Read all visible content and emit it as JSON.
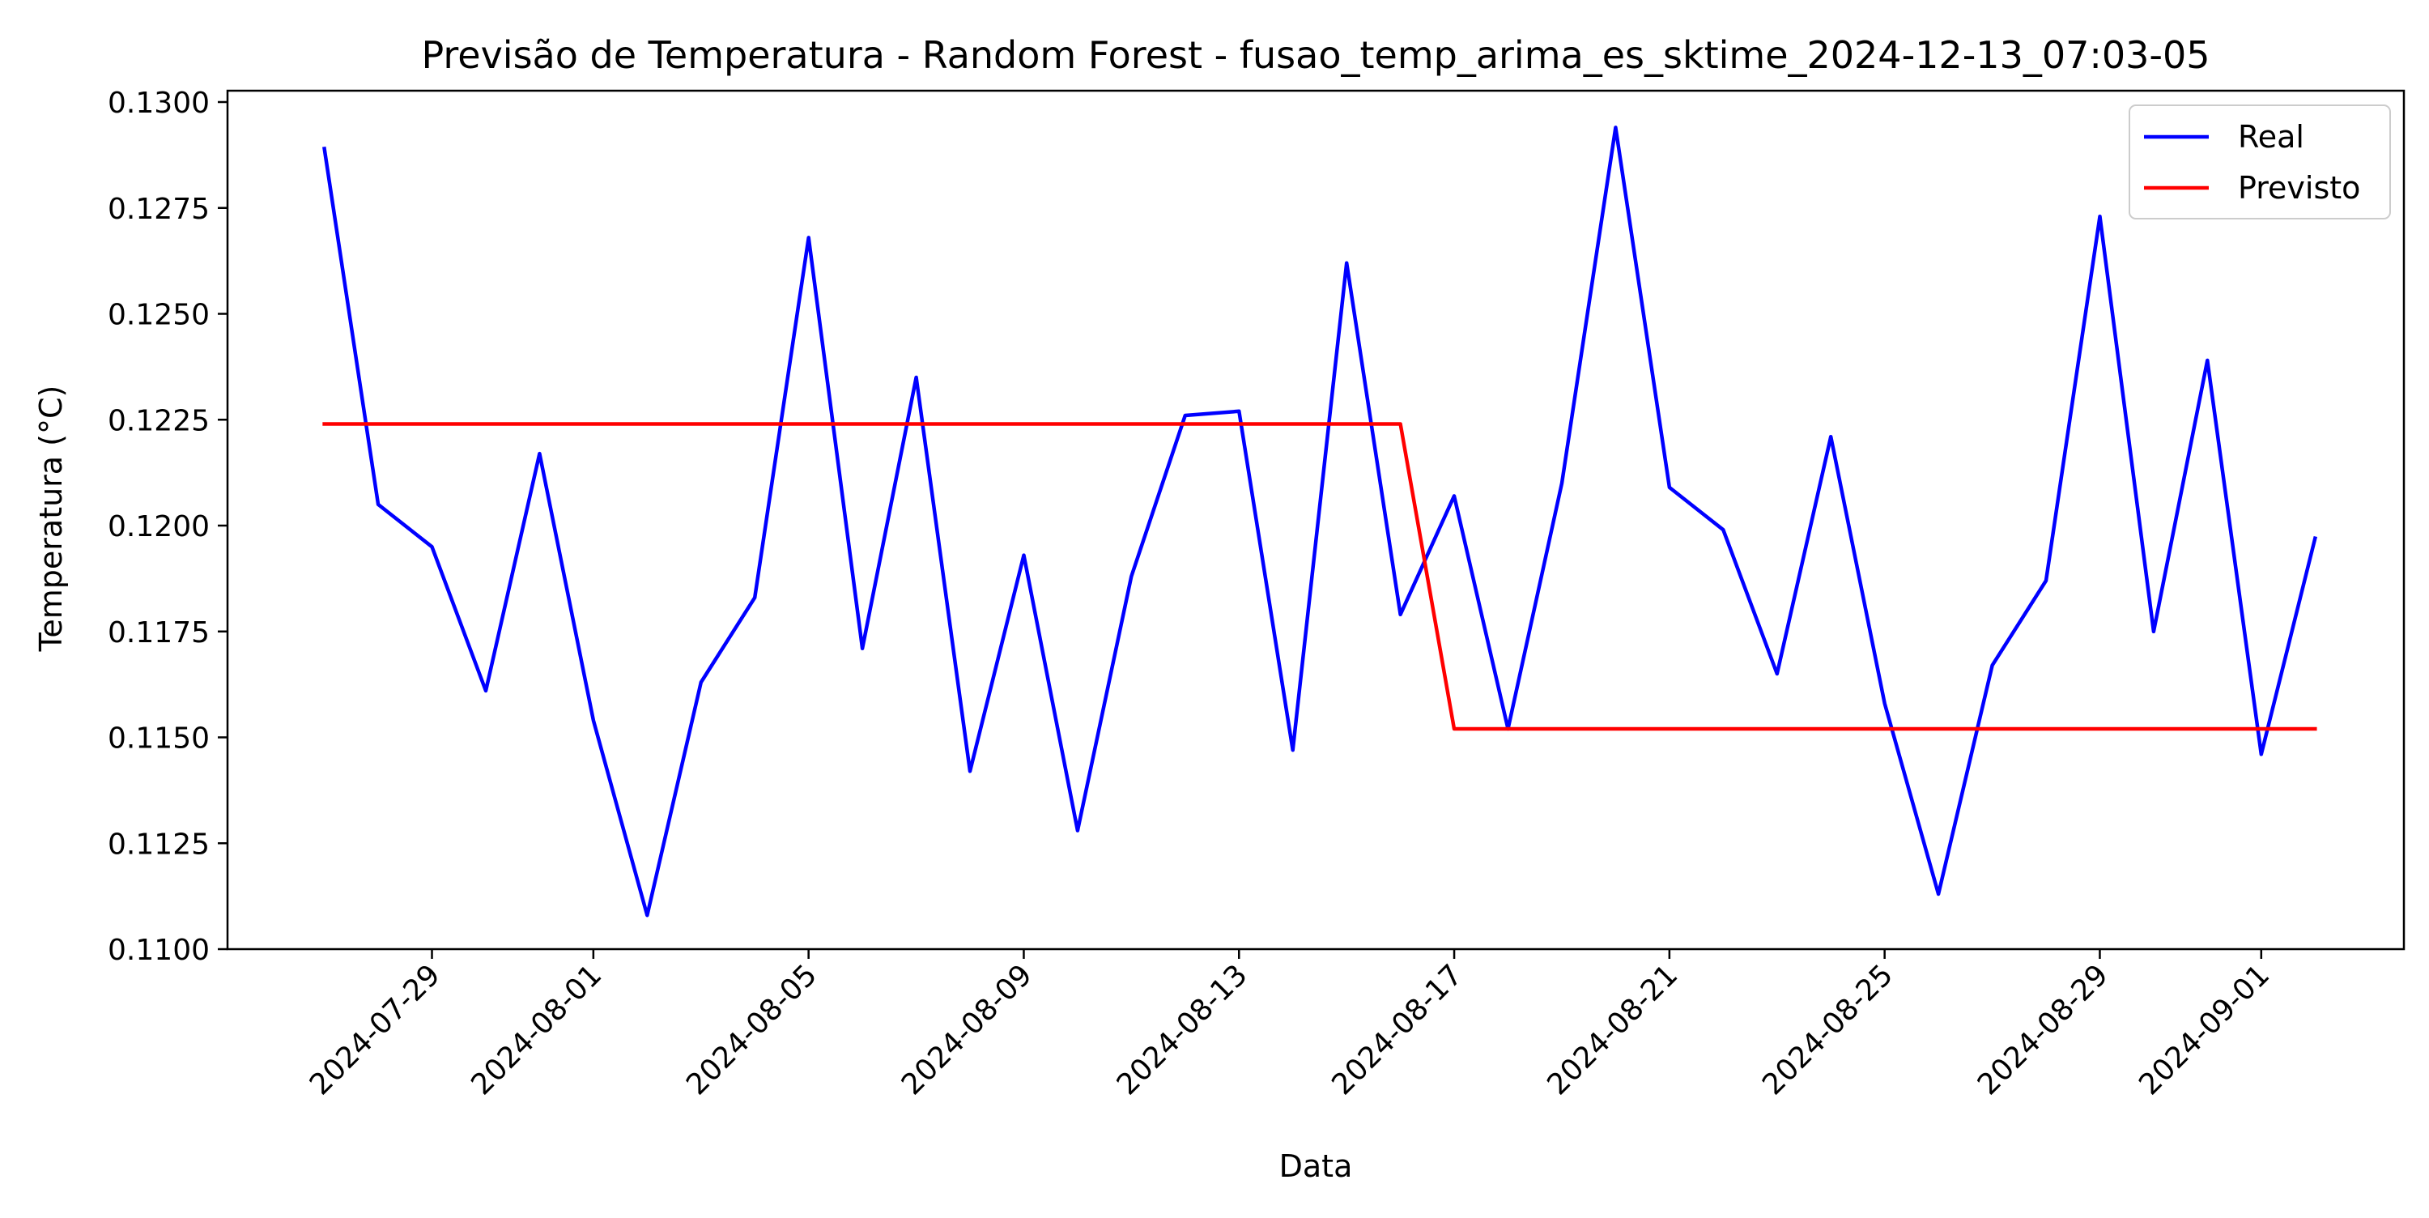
{
  "chart_data": {
    "type": "line",
    "title": "Previsão de Temperatura - Random Forest - fusao_temp_arima_es_sktime_2024-12-13_07:03-05",
    "xlabel": "Data",
    "ylabel": "Temperatura (°C)",
    "ylim": [
      0.11,
      0.13
    ],
    "xlim": [
      "2024-07-25",
      "2024-09-03"
    ],
    "x_ticks": [
      "2024-07-29",
      "2024-08-01",
      "2024-08-05",
      "2024-08-09",
      "2024-08-13",
      "2024-08-17",
      "2024-08-21",
      "2024-08-25",
      "2024-08-29",
      "2024-09-01"
    ],
    "y_ticks": [
      "0.1100",
      "0.1125",
      "0.1150",
      "0.1175",
      "0.1200",
      "0.1225",
      "0.1250",
      "0.1275",
      "0.1300"
    ],
    "grid": false,
    "legend_position": "top-right",
    "series": [
      {
        "name": "Real",
        "color": "#0000ff",
        "x": [
          "2024-07-27",
          "2024-07-28",
          "2024-07-29",
          "2024-07-30",
          "2024-07-31",
          "2024-08-01",
          "2024-08-02",
          "2024-08-03",
          "2024-08-04",
          "2024-08-05",
          "2024-08-06",
          "2024-08-07",
          "2024-08-08",
          "2024-08-09",
          "2024-08-10",
          "2024-08-11",
          "2024-08-12",
          "2024-08-13",
          "2024-08-14",
          "2024-08-15",
          "2024-08-16",
          "2024-08-17",
          "2024-08-18",
          "2024-08-19",
          "2024-08-20",
          "2024-08-21",
          "2024-08-22",
          "2024-08-23",
          "2024-08-24",
          "2024-08-25",
          "2024-08-26",
          "2024-08-27",
          "2024-08-28",
          "2024-08-29",
          "2024-08-30",
          "2024-08-31",
          "2024-09-01",
          "2024-09-02"
        ],
        "values": [
          0.1289,
          0.1205,
          0.1195,
          0.1161,
          0.1217,
          0.1154,
          0.1108,
          0.1163,
          0.1183,
          0.1268,
          0.1171,
          0.1235,
          0.1142,
          0.1193,
          0.1128,
          0.1188,
          0.1226,
          0.1227,
          0.1147,
          0.1262,
          0.1179,
          0.1207,
          0.1152,
          0.121,
          0.1294,
          0.1209,
          0.1199,
          0.1165,
          0.1221,
          0.1158,
          0.1113,
          0.1167,
          0.1187,
          0.1273,
          0.1175,
          0.1239,
          0.1146,
          0.1197
        ]
      },
      {
        "name": "Previsto",
        "color": "#ff0000",
        "x": [
          "2024-07-27",
          "2024-08-16",
          "2024-08-17",
          "2024-09-02"
        ],
        "values": [
          0.1224,
          0.1224,
          0.1152,
          0.1152
        ]
      }
    ]
  }
}
